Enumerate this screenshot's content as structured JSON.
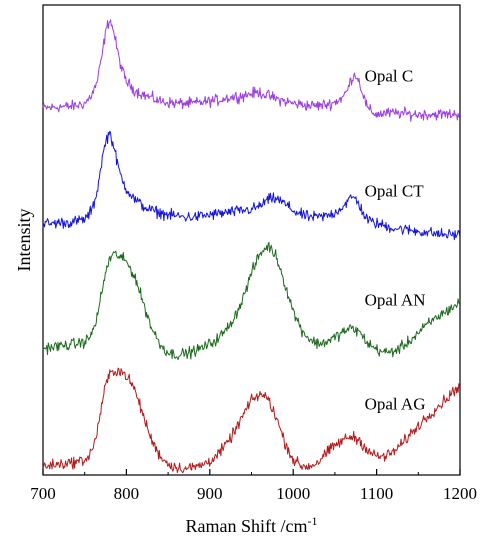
{
  "chart_data": {
    "type": "line",
    "title": "",
    "xlabel": "Raman Shift /cm",
    "xlabel_superscript": "-1",
    "ylabel": "Intensity",
    "xlim": [
      700,
      1200
    ],
    "ylim": [
      0,
      4.3
    ],
    "y_tick_labels": "none",
    "grid": false,
    "legend": "labels placed next to each trace on the right side",
    "x_ticks": [
      700,
      800,
      900,
      1000,
      1100,
      1200
    ],
    "x_tick_labels": [
      "700",
      "800",
      "900",
      "1000",
      "1100",
      "1200"
    ],
    "series": [
      {
        "name": "Opal C",
        "color": "#9b3fe0",
        "label_anchor": [
          1070,
          3.6
        ],
        "x": [
          700,
          710,
          720,
          730,
          740,
          750,
          755,
          760,
          765,
          770,
          775,
          780,
          785,
          790,
          795,
          800,
          810,
          820,
          830,
          840,
          850,
          860,
          870,
          880,
          890,
          900,
          910,
          920,
          930,
          940,
          950,
          960,
          970,
          980,
          990,
          1000,
          1010,
          1020,
          1030,
          1040,
          1050,
          1060,
          1065,
          1070,
          1075,
          1080,
          1085,
          1090,
          1100,
          1110,
          1120,
          1130,
          1140,
          1150,
          1160,
          1170,
          1180,
          1190,
          1200
        ],
        "y": [
          3.36,
          3.36,
          3.37,
          3.37,
          3.38,
          3.4,
          3.44,
          3.5,
          3.6,
          3.8,
          4.05,
          4.18,
          4.05,
          3.85,
          3.7,
          3.6,
          3.52,
          3.48,
          3.45,
          3.42,
          3.41,
          3.4,
          3.4,
          3.4,
          3.41,
          3.42,
          3.43,
          3.45,
          3.46,
          3.47,
          3.49,
          3.5,
          3.47,
          3.44,
          3.42,
          3.4,
          3.39,
          3.38,
          3.38,
          3.39,
          3.41,
          3.46,
          3.52,
          3.63,
          3.67,
          3.58,
          3.45,
          3.34,
          3.3,
          3.31,
          3.31,
          3.31,
          3.3,
          3.3,
          3.3,
          3.3,
          3.3,
          3.3,
          3.3
        ]
      },
      {
        "name": "Opal CT",
        "color": "#1515d8",
        "label_anchor": [
          1070,
          2.55
        ],
        "x": [
          700,
          710,
          720,
          730,
          740,
          750,
          755,
          760,
          765,
          770,
          775,
          780,
          785,
          790,
          795,
          800,
          810,
          820,
          830,
          840,
          850,
          860,
          870,
          880,
          890,
          900,
          910,
          920,
          930,
          940,
          950,
          960,
          970,
          980,
          990,
          1000,
          1010,
          1020,
          1030,
          1040,
          1050,
          1060,
          1065,
          1070,
          1075,
          1080,
          1085,
          1090,
          1100,
          1110,
          1120,
          1130,
          1140,
          1150,
          1160,
          1170,
          1180,
          1190,
          1200
        ],
        "y": [
          2.3,
          2.3,
          2.31,
          2.31,
          2.32,
          2.34,
          2.38,
          2.45,
          2.6,
          2.85,
          3.05,
          3.14,
          3.0,
          2.82,
          2.7,
          2.62,
          2.52,
          2.46,
          2.42,
          2.4,
          2.38,
          2.37,
          2.36,
          2.36,
          2.37,
          2.38,
          2.39,
          2.4,
          2.41,
          2.42,
          2.43,
          2.46,
          2.52,
          2.53,
          2.48,
          2.42,
          2.38,
          2.36,
          2.36,
          2.37,
          2.4,
          2.46,
          2.5,
          2.54,
          2.53,
          2.46,
          2.38,
          2.33,
          2.3,
          2.28,
          2.26,
          2.25,
          2.24,
          2.23,
          2.22,
          2.21,
          2.2,
          2.2,
          2.2
        ]
      },
      {
        "name": "Opal AN",
        "color": "#1f6a1f",
        "label_anchor": [
          1070,
          1.55
        ],
        "x": [
          700,
          710,
          720,
          730,
          740,
          750,
          755,
          760,
          765,
          770,
          775,
          780,
          785,
          790,
          795,
          800,
          810,
          820,
          830,
          840,
          850,
          860,
          870,
          880,
          890,
          900,
          910,
          920,
          930,
          940,
          950,
          960,
          970,
          980,
          990,
          1000,
          1010,
          1020,
          1030,
          1040,
          1050,
          1060,
          1065,
          1070,
          1075,
          1080,
          1085,
          1090,
          1100,
          1110,
          1120,
          1130,
          1140,
          1150,
          1160,
          1170,
          1180,
          1190,
          1200
        ],
        "y": [
          1.16,
          1.17,
          1.18,
          1.19,
          1.2,
          1.22,
          1.25,
          1.32,
          1.45,
          1.65,
          1.85,
          1.98,
          2.02,
          2.01,
          1.98,
          1.95,
          1.82,
          1.58,
          1.35,
          1.2,
          1.12,
          1.1,
          1.11,
          1.13,
          1.16,
          1.2,
          1.25,
          1.33,
          1.45,
          1.62,
          1.85,
          2.02,
          2.1,
          2.0,
          1.75,
          1.5,
          1.33,
          1.24,
          1.2,
          1.22,
          1.26,
          1.31,
          1.33,
          1.34,
          1.33,
          1.3,
          1.25,
          1.2,
          1.15,
          1.12,
          1.13,
          1.17,
          1.23,
          1.3,
          1.37,
          1.43,
          1.48,
          1.53,
          1.58
        ]
      },
      {
        "name": "Opal AG",
        "color": "#b21c1c",
        "label_anchor": [
          1070,
          0.6
        ],
        "x": [
          700,
          710,
          720,
          730,
          740,
          750,
          755,
          760,
          765,
          770,
          775,
          780,
          785,
          790,
          795,
          800,
          810,
          820,
          830,
          840,
          850,
          860,
          870,
          880,
          890,
          900,
          910,
          920,
          930,
          940,
          950,
          960,
          970,
          980,
          990,
          1000,
          1010,
          1020,
          1030,
          1040,
          1050,
          1060,
          1065,
          1070,
          1075,
          1080,
          1085,
          1090,
          1100,
          1110,
          1120,
          1130,
          1140,
          1150,
          1160,
          1170,
          1180,
          1190,
          1200
        ],
        "y": [
          0.08,
          0.09,
          0.1,
          0.11,
          0.12,
          0.14,
          0.17,
          0.25,
          0.4,
          0.62,
          0.82,
          0.92,
          0.95,
          0.96,
          0.94,
          0.91,
          0.78,
          0.55,
          0.32,
          0.18,
          0.1,
          0.07,
          0.06,
          0.07,
          0.09,
          0.13,
          0.19,
          0.28,
          0.4,
          0.55,
          0.68,
          0.74,
          0.7,
          0.52,
          0.3,
          0.14,
          0.08,
          0.08,
          0.12,
          0.2,
          0.27,
          0.32,
          0.34,
          0.35,
          0.34,
          0.31,
          0.27,
          0.22,
          0.17,
          0.17,
          0.21,
          0.28,
          0.37,
          0.45,
          0.53,
          0.6,
          0.67,
          0.75,
          0.82
        ]
      }
    ]
  }
}
